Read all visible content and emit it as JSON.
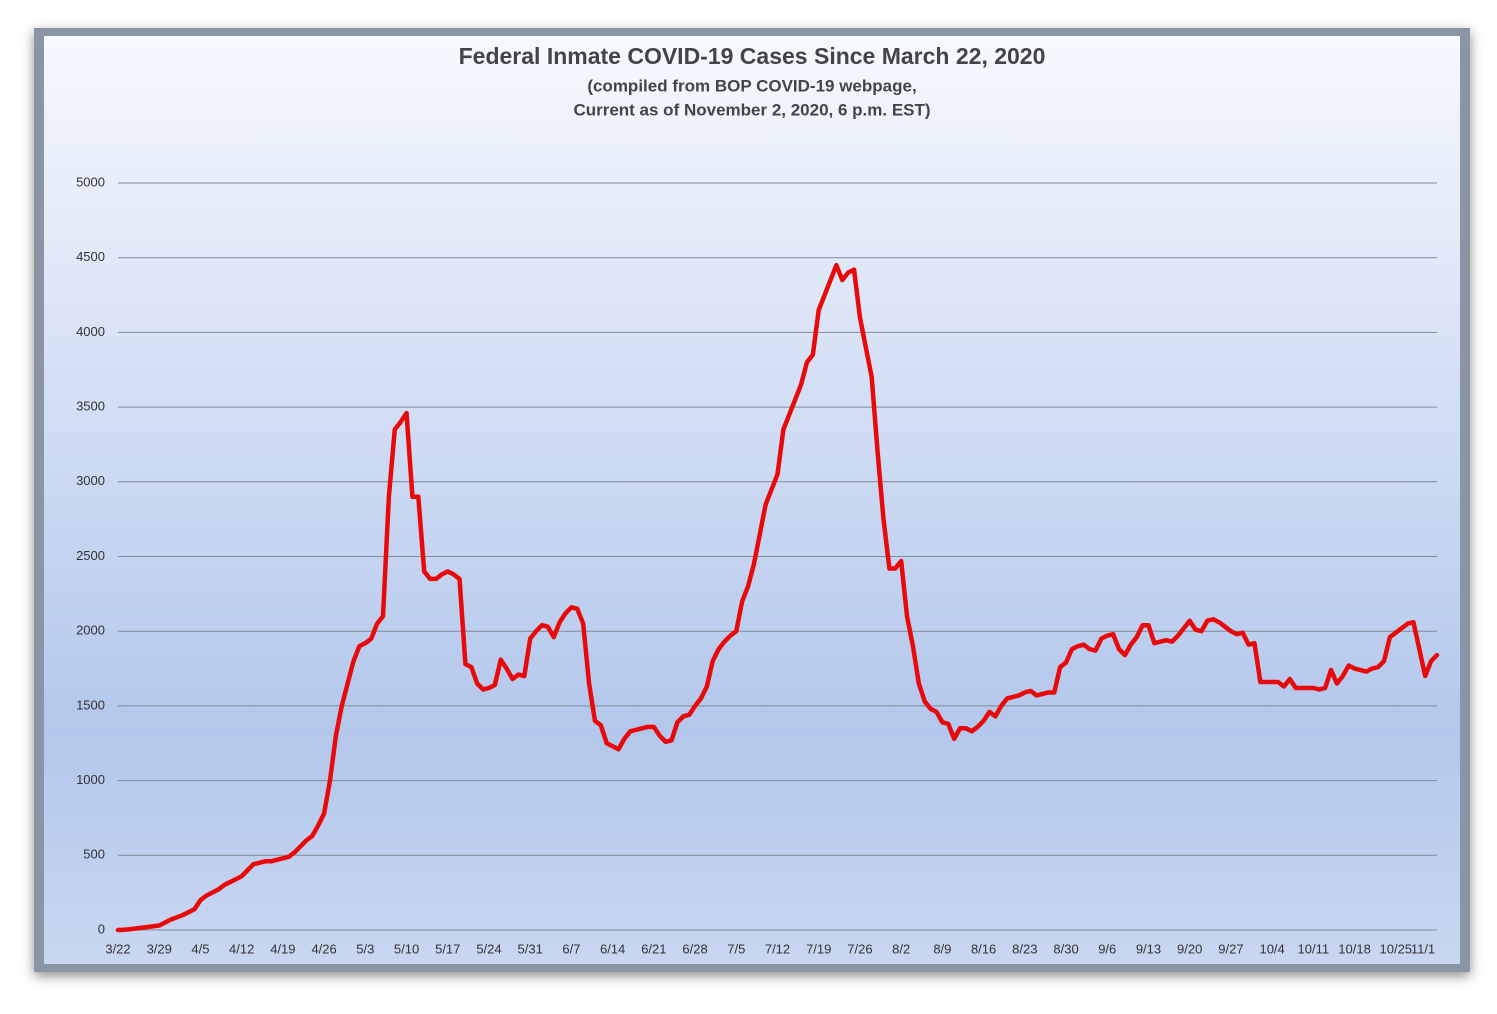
{
  "chart_data": {
    "type": "line",
    "title": "Federal Inmate COVID-19 Cases Since March 22, 2020",
    "subtitle": [
      "(compiled from BOP COVID-19 webpage,",
      "Current as of November 2, 2020, 6 p.m. EST)"
    ],
    "color": "#e80a0a",
    "ylim": [
      0,
      5000
    ],
    "yticks": [
      0,
      500,
      1000,
      1500,
      2000,
      2500,
      3000,
      3500,
      4000,
      4500,
      5000
    ],
    "grid": true,
    "categories": [
      "3/22",
      null,
      null,
      null,
      null,
      null,
      null,
      "3/29",
      null,
      null,
      null,
      null,
      null,
      null,
      "4/5",
      null,
      null,
      null,
      null,
      null,
      null,
      "4/12",
      null,
      null,
      null,
      null,
      null,
      null,
      "4/19",
      null,
      null,
      null,
      null,
      null,
      null,
      "4/26",
      null,
      null,
      null,
      null,
      null,
      null,
      "5/3",
      null,
      null,
      null,
      null,
      null,
      null,
      "5/10",
      null,
      null,
      null,
      null,
      null,
      null,
      "5/17",
      null,
      null,
      null,
      null,
      null,
      null,
      "5/24",
      null,
      null,
      null,
      null,
      null,
      null,
      "5/31",
      null,
      null,
      null,
      null,
      null,
      null,
      "6/7",
      null,
      null,
      null,
      null,
      null,
      null,
      "6/14",
      null,
      null,
      null,
      null,
      null,
      null,
      "6/21",
      null,
      null,
      null,
      null,
      null,
      null,
      "6/28",
      null,
      null,
      null,
      null,
      null,
      null,
      "7/5",
      null,
      null,
      null,
      null,
      null,
      null,
      "7/12",
      null,
      null,
      null,
      null,
      null,
      null,
      "7/19",
      null,
      null,
      null,
      null,
      null,
      null,
      "7/26",
      null,
      null,
      null,
      null,
      null,
      null,
      "8/2",
      null,
      null,
      null,
      null,
      null,
      null,
      "8/9",
      null,
      null,
      null,
      null,
      null,
      null,
      "8/16",
      null,
      null,
      null,
      null,
      null,
      null,
      "8/23",
      null,
      null,
      null,
      null,
      null,
      null,
      "8/30",
      null,
      null,
      null,
      null,
      null,
      null,
      "9/6",
      null,
      null,
      null,
      null,
      null,
      null,
      "9/13",
      null,
      null,
      null,
      null,
      null,
      null,
      "9/20",
      null,
      null,
      null,
      null,
      null,
      null,
      "9/27",
      null,
      null,
      null,
      null,
      null,
      null,
      "10/4",
      null,
      null,
      null,
      null,
      null,
      null,
      "10/11",
      null,
      null,
      null,
      null,
      null,
      null,
      "10/18",
      null,
      null,
      null,
      null,
      null,
      null,
      "10/25",
      null,
      null,
      null,
      null,
      null,
      null,
      "11/1"
    ],
    "values": [
      0,
      2,
      5,
      10,
      15,
      20,
      25,
      30,
      50,
      70,
      85,
      100,
      120,
      140,
      200,
      230,
      250,
      270,
      300,
      320,
      340,
      360,
      400,
      440,
      450,
      460,
      460,
      470,
      480,
      490,
      520,
      560,
      600,
      630,
      700,
      780,
      1000,
      1300,
      1500,
      1650,
      1800,
      1900,
      1920,
      1950,
      2050,
      2100,
      2900,
      3350,
      3400,
      3460,
      2900,
      2900,
      2400,
      2350,
      2350,
      2380,
      2400,
      2380,
      2350,
      1780,
      1760,
      1650,
      1610,
      1620,
      1640,
      1810,
      1750,
      1680,
      1710,
      1700,
      1950,
      2000,
      2040,
      2030,
      1960,
      2060,
      2120,
      2160,
      2150,
      2050,
      1650,
      1400,
      1370,
      1250,
      1230,
      1210,
      1280,
      1330,
      1340,
      1350,
      1360,
      1360,
      1300,
      1260,
      1270,
      1390,
      1430,
      1440,
      1500,
      1550,
      1630,
      1800,
      1880,
      1930,
      1970,
      2000,
      2200,
      2300,
      2450,
      2650,
      2850,
      2950,
      3050,
      3350,
      3450,
      3550,
      3650,
      3800,
      3850,
      4150,
      4250,
      4350,
      4450,
      4350,
      4400,
      4420,
      4100,
      3900,
      3700,
      3200,
      2750,
      2420,
      2420,
      2470,
      2100,
      1900,
      1650,
      1530,
      1480,
      1460,
      1390,
      1380,
      1280,
      1350,
      1350,
      1330,
      1360,
      1400,
      1460,
      1430,
      1500,
      1550,
      1560,
      1570,
      1590,
      1600,
      1570,
      1580,
      1590,
      1590,
      1760,
      1790,
      1880,
      1900,
      1910,
      1880,
      1870,
      1950,
      1970,
      1980,
      1880,
      1840,
      1910,
      1960,
      2040,
      2040,
      1920,
      1930,
      1940,
      1930,
      1970,
      2020,
      2070,
      2010,
      2000,
      2070,
      2080,
      2060,
      2030,
      2000,
      1980,
      1990,
      1910,
      1920,
      1660,
      1660,
      1660,
      1660,
      1630,
      1680,
      1620,
      1620,
      1620,
      1620,
      1610,
      1620,
      1740,
      1650,
      1700,
      1770,
      1750,
      1740,
      1730,
      1750,
      1760,
      1800,
      1960,
      1990,
      2020,
      2050,
      2060,
      1880,
      1700,
      1800,
      1840
    ]
  }
}
